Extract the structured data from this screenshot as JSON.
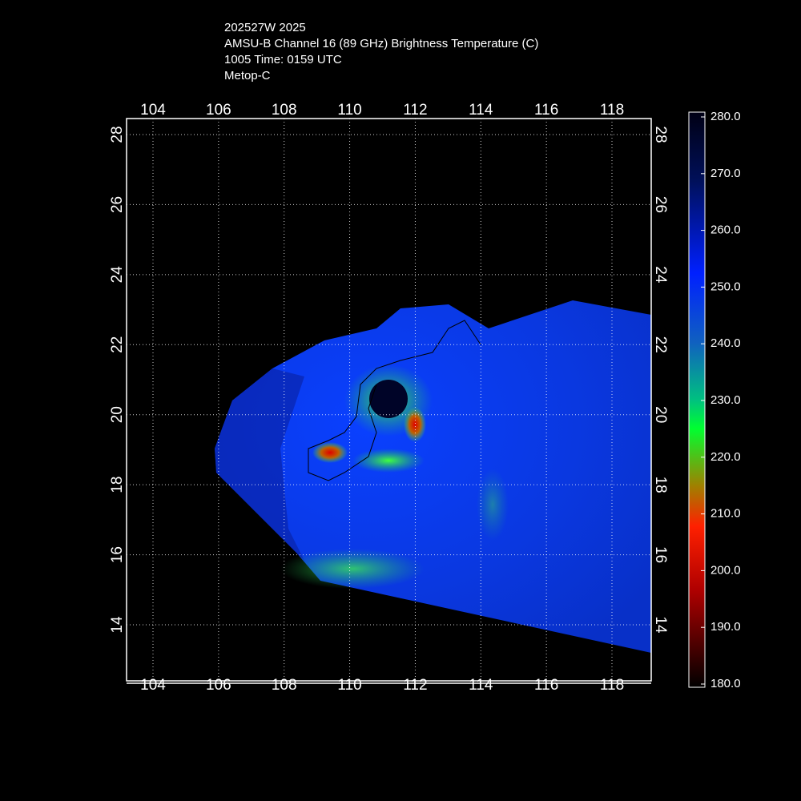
{
  "header": {
    "lines": [
      "202527W 2025",
      "AMSU-B Channel 16 (89 GHz) Brightness Temperature (C)",
      "1005 Time: 0159 UTC",
      "Metop-C"
    ]
  },
  "map": {
    "lon_ticks": [
      104,
      106,
      108,
      110,
      112,
      114,
      116,
      118
    ],
    "lat_ticks": [
      14,
      16,
      18,
      20,
      22,
      24,
      26,
      28
    ]
  },
  "colorbar": {
    "ticks": [
      {
        "value": 280,
        "label": "280.0"
      },
      {
        "value": 270,
        "label": "270.0"
      },
      {
        "value": 260,
        "label": "260.0"
      },
      {
        "value": 250,
        "label": "250.0"
      },
      {
        "value": 240,
        "label": "240.0"
      },
      {
        "value": 230,
        "label": "230.0"
      },
      {
        "value": 220,
        "label": "220.0"
      },
      {
        "value": 210,
        "label": "210.0"
      },
      {
        "value": 200,
        "label": "200.0"
      },
      {
        "value": 190,
        "label": "190.0"
      },
      {
        "value": 180,
        "label": "180.0"
      }
    ]
  }
}
